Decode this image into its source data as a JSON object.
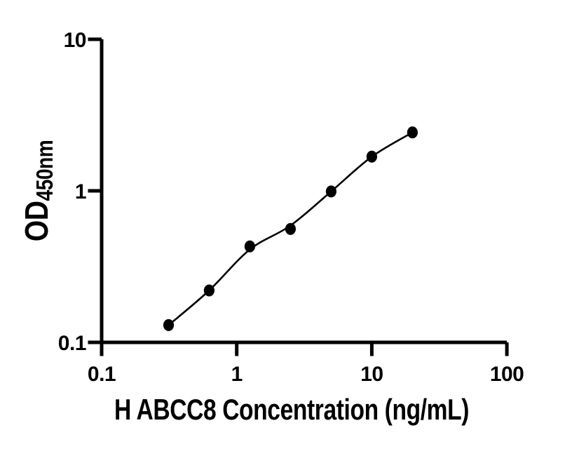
{
  "figure": {
    "background": "#ffffff",
    "ink_color": "#000000"
  },
  "chart_data": {
    "type": "scatter",
    "title": "",
    "xlabel": "H ABCC8 Concentration (ng/mL)",
    "ylabel_main": "OD",
    "ylabel_sub": "450nm",
    "x_scale": "log",
    "y_scale": "log",
    "xlim": [
      0.1,
      100
    ],
    "ylim": [
      0.1,
      10
    ],
    "x_ticks": [
      0.1,
      1,
      10,
      100
    ],
    "x_tick_labels": [
      "0.1",
      "1",
      "10",
      "100"
    ],
    "y_ticks": [
      0.1,
      1,
      10
    ],
    "y_tick_labels": [
      "0.1",
      "1",
      "10"
    ],
    "grid": false,
    "legend": false,
    "series": [
      {
        "name": "standard-points",
        "kind": "scatter",
        "marker_shape": "filled-circle",
        "marker_color": "#000000",
        "x": [
          0.313,
          0.625,
          1.25,
          2.5,
          5,
          10,
          20
        ],
        "y": [
          0.13,
          0.22,
          0.43,
          0.56,
          0.99,
          1.68,
          2.43
        ]
      },
      {
        "name": "fitted-curve",
        "kind": "line",
        "line_color": "#000000",
        "x": [
          0.313,
          0.625,
          1.25,
          2.5,
          5,
          10,
          20
        ],
        "y": [
          0.13,
          0.22,
          0.41,
          0.59,
          0.99,
          1.68,
          2.43
        ]
      }
    ]
  }
}
